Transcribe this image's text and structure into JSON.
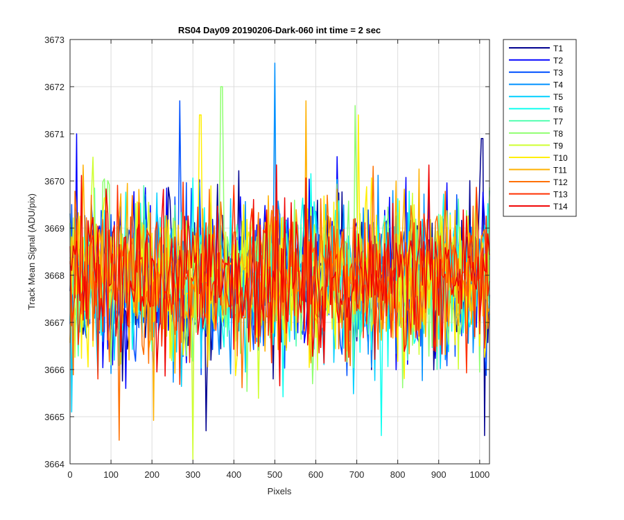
{
  "chart_data": {
    "type": "line",
    "title": "RS04 Day09 20190206-Dark-060 int time = 2 sec",
    "xlabel": "Pixels",
    "ylabel": "Track Mean Signal (ADU/pix)",
    "xlim": [
      0,
      1024
    ],
    "ylim": [
      3664,
      3673
    ],
    "xticks": [
      0,
      100,
      200,
      300,
      400,
      500,
      600,
      700,
      800,
      900,
      1000
    ],
    "yticks": [
      3664,
      3665,
      3666,
      3667,
      3668,
      3669,
      3670,
      3671,
      3672,
      3673
    ],
    "grid": true,
    "legend_position": "outside-right-top",
    "x_step": 4,
    "series": [
      {
        "name": "T1",
        "color": "#00008F",
        "mean": 3667.9,
        "spread": 0.85,
        "seed": 11
      },
      {
        "name": "T2",
        "color": "#0000FF",
        "mean": 3667.9,
        "spread": 0.85,
        "seed": 23
      },
      {
        "name": "T3",
        "color": "#0050FF",
        "mean": 3667.9,
        "spread": 0.85,
        "seed": 37
      },
      {
        "name": "T4",
        "color": "#0090FF",
        "mean": 3667.9,
        "spread": 0.85,
        "seed": 41
      },
      {
        "name": "T5",
        "color": "#00CFFF",
        "mean": 3667.9,
        "spread": 0.85,
        "seed": 53
      },
      {
        "name": "T6",
        "color": "#10FFEF",
        "mean": 3667.9,
        "spread": 0.85,
        "seed": 67
      },
      {
        "name": "T7",
        "color": "#50FFAF",
        "mean": 3667.9,
        "spread": 0.85,
        "seed": 71
      },
      {
        "name": "T8",
        "color": "#8FFF70",
        "mean": 3667.9,
        "spread": 0.85,
        "seed": 83
      },
      {
        "name": "T9",
        "color": "#CFFF30",
        "mean": 3667.9,
        "spread": 0.85,
        "seed": 97
      },
      {
        "name": "T10",
        "color": "#FFEF00",
        "mean": 3667.9,
        "spread": 0.85,
        "seed": 101
      },
      {
        "name": "T11",
        "color": "#FFB000",
        "mean": 3667.9,
        "spread": 0.85,
        "seed": 113
      },
      {
        "name": "T12",
        "color": "#FF7000",
        "mean": 3667.9,
        "spread": 0.85,
        "seed": 127
      },
      {
        "name": "T13",
        "color": "#FF3000",
        "mean": 3667.9,
        "spread": 0.85,
        "seed": 131
      },
      {
        "name": "T14",
        "color": "#F00000",
        "mean": 3667.9,
        "spread": 0.85,
        "seed": 149
      }
    ],
    "peaks": [
      {
        "series": "T4",
        "x": 500,
        "y": 3672.5
      },
      {
        "series": "T8",
        "x": 370,
        "y": 3672.0
      },
      {
        "series": "T11",
        "x": 575,
        "y": 3671.7
      },
      {
        "series": "T3",
        "x": 268,
        "y": 3671.7
      },
      {
        "series": "T8",
        "x": 695,
        "y": 3671.6
      },
      {
        "series": "T10",
        "x": 318,
        "y": 3671.4
      },
      {
        "series": "T10",
        "x": 703,
        "y": 3671.4
      },
      {
        "series": "T1",
        "x": 1006,
        "y": 3670.9
      },
      {
        "series": "T9",
        "x": 300,
        "y": 3664.1
      },
      {
        "series": "T12",
        "x": 120,
        "y": 3664.5
      },
      {
        "series": "T1",
        "x": 1012,
        "y": 3664.6
      },
      {
        "series": "T1",
        "x": 332,
        "y": 3664.7
      },
      {
        "series": "T6",
        "x": 760,
        "y": 3664.6
      },
      {
        "series": "T5",
        "x": 5,
        "y": 3665.1
      },
      {
        "series": "T2",
        "x": 15,
        "y": 3671.0
      }
    ]
  }
}
